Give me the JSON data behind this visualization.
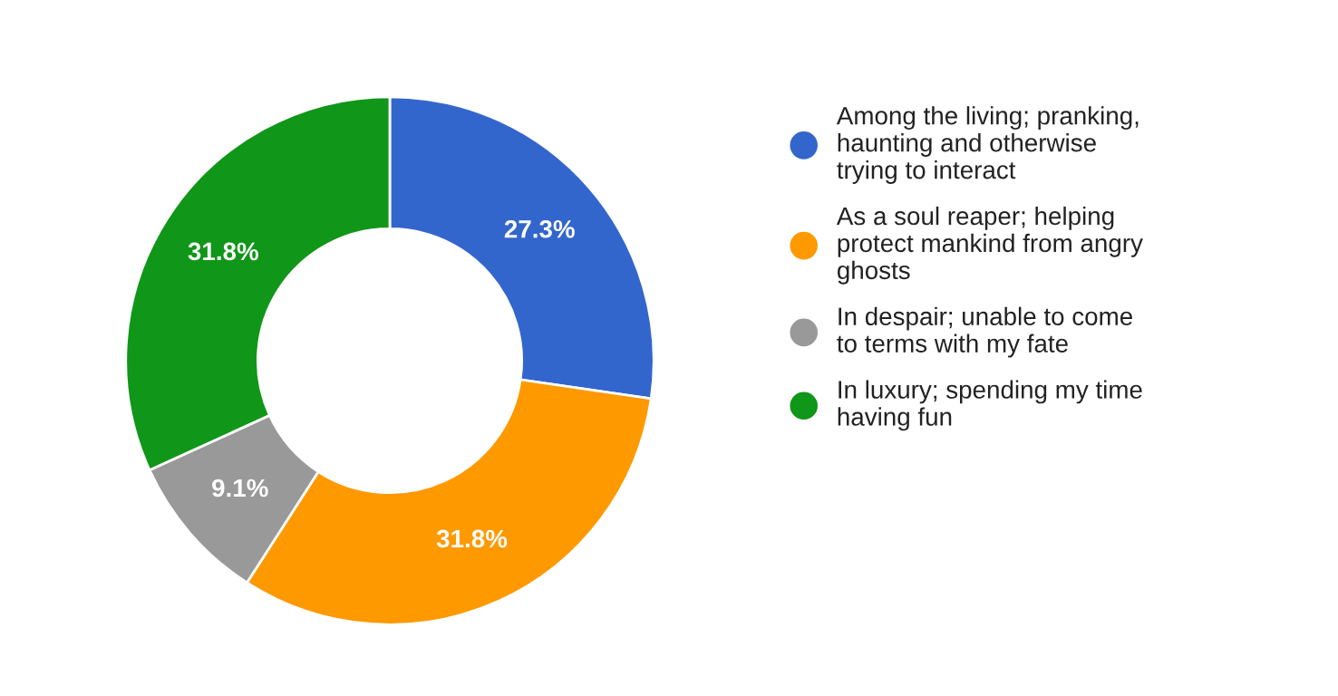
{
  "chart_data": {
    "type": "donut",
    "categories": [
      "Among the living; pranking, haunting and otherwise trying to interact",
      "As a soul reaper; helping protect mankind from angry ghosts",
      "In despair; unable to come to terms with my fate",
      "In luxury; spending my time having fun"
    ],
    "values": [
      27.3,
      31.8,
      9.1,
      31.8
    ],
    "colors": [
      "#3366cc",
      "#ff9900",
      "#999999",
      "#109618"
    ],
    "value_labels": [
      "27.3%",
      "31.8%",
      "9.1%",
      "31.8%"
    ],
    "legend": "right"
  }
}
